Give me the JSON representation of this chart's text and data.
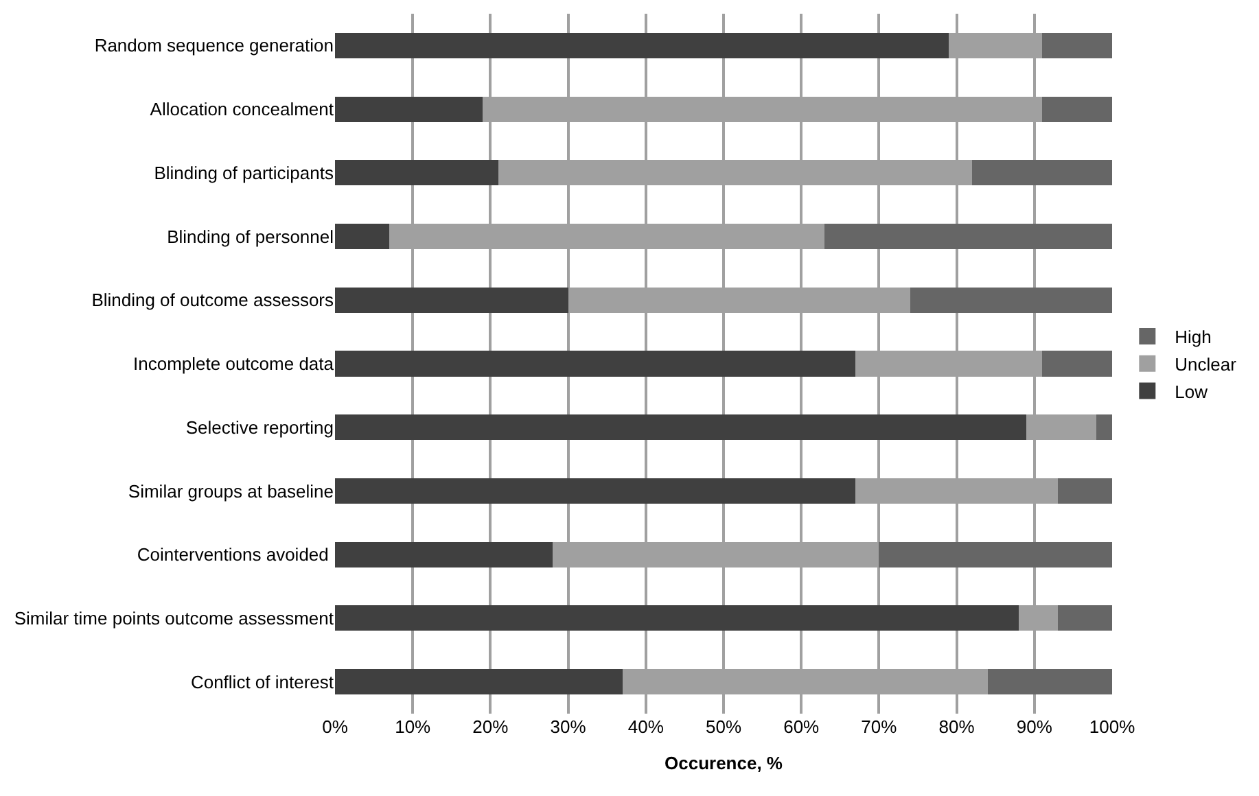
{
  "chart_data": {
    "type": "bar",
    "orientation": "horizontal",
    "stacked": true,
    "xlabel": "Occurence, %",
    "categories": [
      "Random sequence generation",
      "Allocation concealment",
      "Blinding of participants",
      "Blinding of personnel",
      "Blinding of outcome assessors",
      "Incomplete outcome data",
      "Selective reporting",
      "Similar groups at baseline",
      "Cointerventions avoided ",
      "Similar time points outcome assessment",
      "Conflict of interest"
    ],
    "series": [
      {
        "name": "Low",
        "color": "#404040",
        "values": [
          79,
          19,
          21,
          7,
          30,
          67,
          89,
          67,
          28,
          88,
          37
        ]
      },
      {
        "name": "Unclear",
        "color": "#a0a0a0",
        "values": [
          12,
          72,
          61,
          56,
          44,
          24,
          9,
          26,
          42,
          5,
          47
        ]
      },
      {
        "name": "High",
        "color": "#666666",
        "values": [
          9,
          9,
          18,
          37,
          26,
          9,
          2,
          7,
          30,
          7,
          16
        ]
      }
    ],
    "xlim": [
      0,
      100
    ],
    "xticks": [
      {
        "value": 0,
        "label": "0%"
      },
      {
        "value": 10,
        "label": "10%"
      },
      {
        "value": 20,
        "label": "20%"
      },
      {
        "value": 30,
        "label": "30%"
      },
      {
        "value": 40,
        "label": "40%"
      },
      {
        "value": 50,
        "label": "50%"
      },
      {
        "value": 60,
        "label": "60%"
      },
      {
        "value": 70,
        "label": "70%"
      },
      {
        "value": 80,
        "label": "80%"
      },
      {
        "value": 90,
        "label": "90%"
      },
      {
        "value": 100,
        "label": "100%"
      }
    ],
    "grid": "x",
    "legend": "right"
  }
}
